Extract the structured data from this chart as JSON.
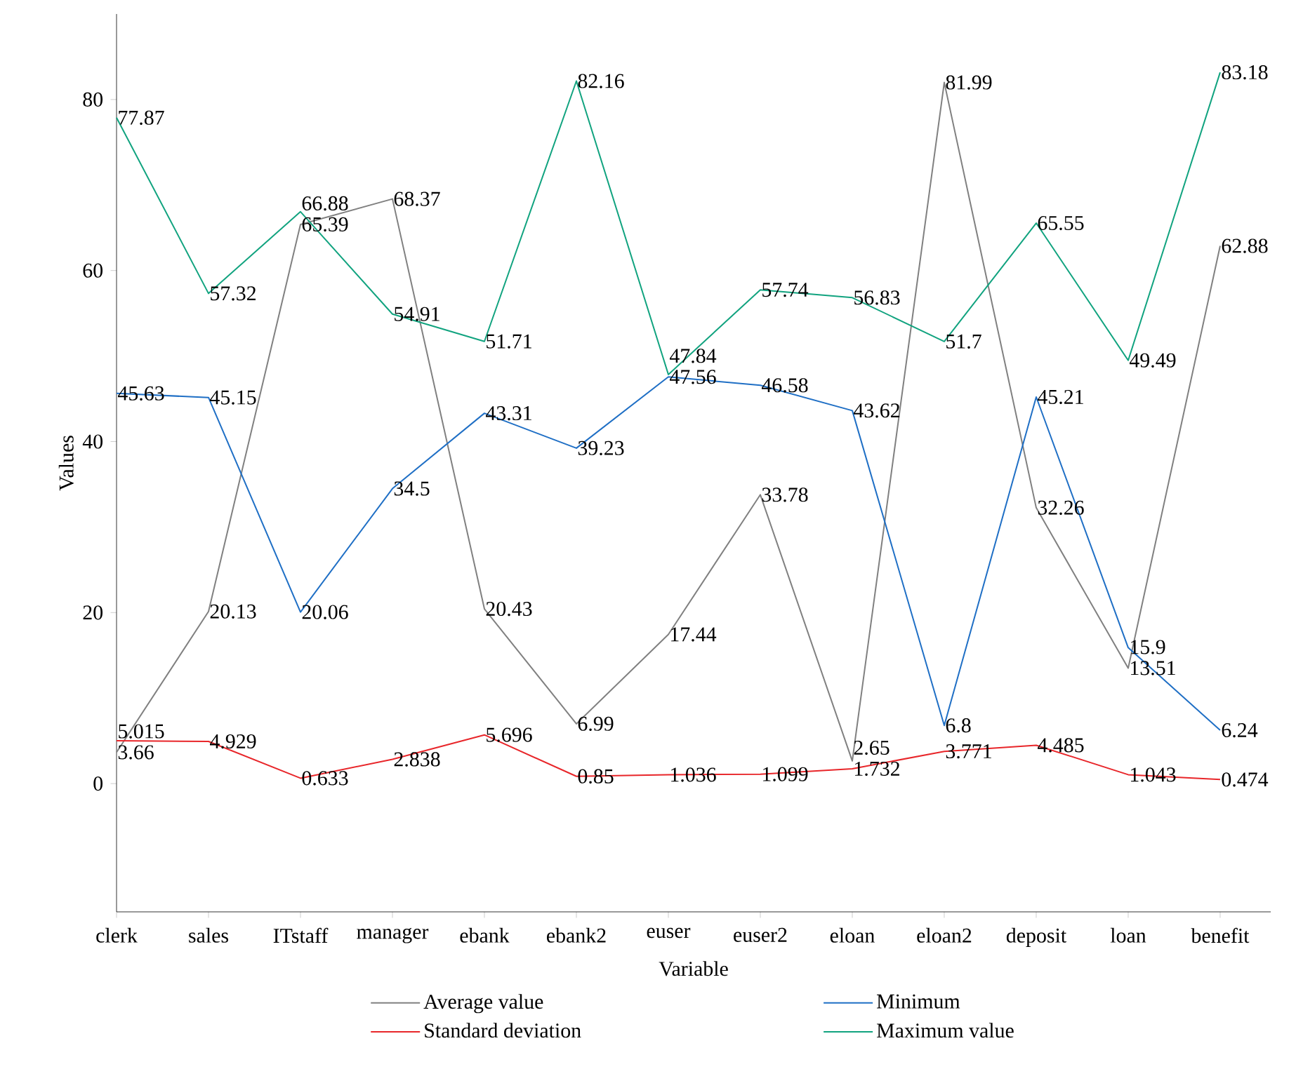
{
  "chart_data": {
    "type": "line",
    "xlabel": "Variable",
    "ylabel": "Values",
    "categories": [
      "clerk",
      "sales",
      "ITstaff",
      "manager",
      "ebank",
      "ebank2",
      "euser",
      "euser2",
      "eloan",
      "eloan2",
      "deposit",
      "loan",
      "benefit"
    ],
    "series": [
      {
        "name": "Average value",
        "color": "#808080",
        "values": [
          3.66,
          20.13,
          65.39,
          68.37,
          20.43,
          6.99,
          17.44,
          33.78,
          2.65,
          81.99,
          32.26,
          13.51,
          62.88
        ]
      },
      {
        "name": "Minimum",
        "color": "#1f6fc5",
        "values": [
          45.63,
          45.15,
          20.06,
          34.5,
          43.31,
          39.23,
          47.56,
          46.58,
          43.62,
          6.8,
          45.21,
          15.9,
          6.24
        ]
      },
      {
        "name": "Standard deviation",
        "color": "#e8262a",
        "values": [
          5.015,
          4.929,
          0.633,
          2.838,
          5.696,
          0.85,
          1.036,
          1.099,
          1.732,
          3.771,
          4.485,
          1.043,
          0.474
        ]
      },
      {
        "name": "Maximum value",
        "color": "#11a37f",
        "values": [
          77.87,
          57.32,
          66.88,
          54.91,
          51.71,
          82.16,
          47.84,
          57.74,
          56.83,
          51.7,
          65.55,
          49.49,
          83.18
        ]
      }
    ],
    "ylim": [
      -15,
      90
    ],
    "yticks": [
      0,
      20,
      40,
      60,
      80
    ],
    "grid": false,
    "legend": "bottom",
    "marker": "none",
    "line_style": "solid",
    "data_labels": true
  }
}
